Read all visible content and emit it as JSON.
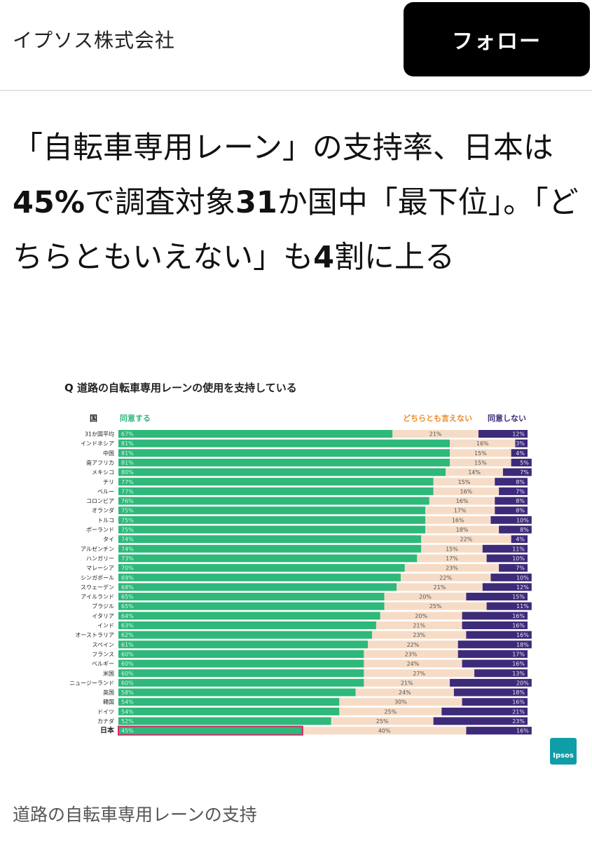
{
  "header": {
    "company": "イプソス株式会社",
    "follow_label": "フォロー"
  },
  "headline": {
    "parts": [
      {
        "text": "「自転車専用レーン」の支持率、日本は",
        "bold": false
      },
      {
        "text": "45%",
        "bold": true
      },
      {
        "text": "で調査対象",
        "bold": false
      },
      {
        "text": "31",
        "bold": true
      },
      {
        "text": "か国中「最下位」。「どちらともいえない」も",
        "bold": false
      },
      {
        "text": "4",
        "bold": true
      },
      {
        "text": "割に上る",
        "bold": false
      }
    ]
  },
  "chart_data": {
    "type": "bar",
    "stacked": true,
    "orientation": "horizontal",
    "title": "Q 道路の自転車専用レーンの使用を支持している",
    "category_header": "国",
    "categories": [
      "31か国平均",
      "インドネシア",
      "中国",
      "南アフリカ",
      "メキシコ",
      "チリ",
      "ペルー",
      "コロンビア",
      "オランダ",
      "トルコ",
      "ポーランド",
      "タイ",
      "アルゼンチン",
      "ハンガリー",
      "マレーシア",
      "シンガポール",
      "スウェーデン",
      "アイルランド",
      "ブラジル",
      "イタリア",
      "インド",
      "オーストラリア",
      "スペイン",
      "フランス",
      "ベルギー",
      "米国",
      "ニュージーランド",
      "英国",
      "韓国",
      "ドイツ",
      "カナダ",
      "日本"
    ],
    "series": [
      {
        "name": "同意する",
        "color": "#2eb87a",
        "values": [
          67,
          81,
          81,
          81,
          80,
          77,
          77,
          76,
          75,
          75,
          75,
          74,
          74,
          73,
          70,
          69,
          68,
          65,
          65,
          64,
          63,
          62,
          61,
          60,
          60,
          60,
          60,
          58,
          54,
          54,
          52,
          45
        ]
      },
      {
        "name": "どちらとも言えない",
        "color": "#f6dcc6",
        "values": [
          21,
          16,
          15,
          15,
          14,
          15,
          16,
          16,
          17,
          16,
          18,
          22,
          15,
          17,
          23,
          22,
          21,
          20,
          25,
          20,
          21,
          23,
          22,
          23,
          24,
          27,
          21,
          24,
          30,
          25,
          25,
          40
        ]
      },
      {
        "name": "同意しない",
        "color": "#3d2a78",
        "values": [
          12,
          3,
          4,
          5,
          7,
          8,
          7,
          8,
          8,
          10,
          8,
          4,
          11,
          10,
          7,
          10,
          12,
          15,
          11,
          16,
          16,
          16,
          18,
          17,
          16,
          13,
          20,
          18,
          16,
          21,
          23,
          16
        ]
      }
    ],
    "legend_colors": {
      "agree": "#2eb87a",
      "neutral": "#f08c2a",
      "disagree": "#3d2a78"
    },
    "highlight": {
      "category": "日本",
      "color": "#d6286a"
    },
    "xlim": [
      0,
      100
    ],
    "grid": false
  },
  "logo": {
    "text": "Ipsos",
    "color": "#0f9ea8"
  },
  "caption": "道路の自転車専用レーンの支持"
}
